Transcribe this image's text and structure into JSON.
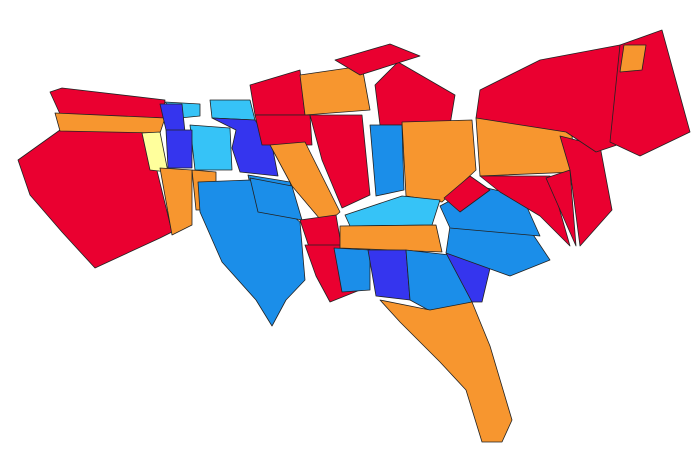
{
  "map": {
    "palette": {
      "red": "#ea0030",
      "orange": "#f7962f",
      "light_blue": "#36c3f7",
      "medium_blue": "#1b8ee9",
      "dark_blue": "#3535ee",
      "pale_yellow": "#ffff9c"
    },
    "region_fills": [
      "red",
      "red",
      "orange",
      "pale_yellow",
      "light_blue",
      "dark_blue",
      "light_blue",
      "dark_blue",
      "light_blue",
      "dark_blue",
      "red",
      "orange",
      "red",
      "red",
      "red",
      "red",
      "orange",
      "medium_blue",
      "orange",
      "orange",
      "medium_blue",
      "medium_blue",
      "red",
      "red",
      "medium_blue",
      "orange",
      "light_blue",
      "orange",
      "medium_blue",
      "dark_blue",
      "medium_blue",
      "dark_blue",
      "medium_blue",
      "medium_blue",
      "red",
      "orange",
      "red",
      "red",
      "red",
      "red",
      "red",
      "orange",
      "orange"
    ]
  }
}
